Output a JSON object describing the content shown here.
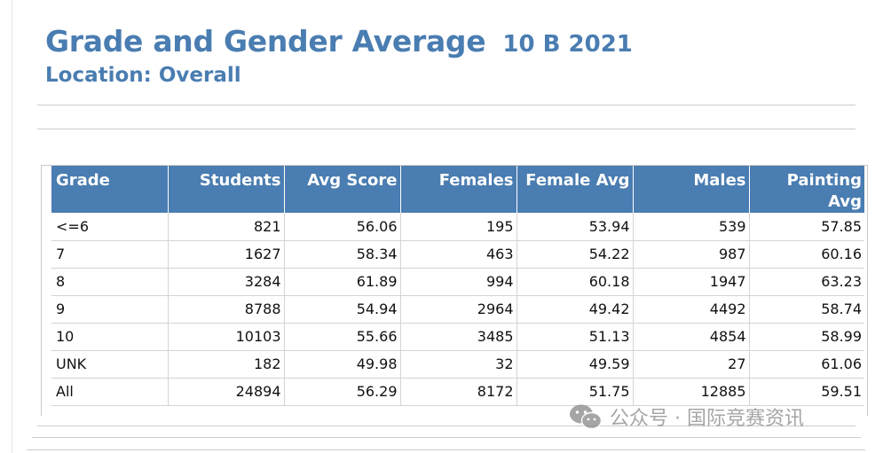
{
  "report": {
    "title": "Grade and Gender Average",
    "subtitle": "10 B 2021",
    "location": "Location: Overall"
  },
  "table": {
    "headers": [
      "Grade",
      "Students",
      "Avg Score",
      "Females",
      "Female Avg",
      "Males",
      "Painting Avg"
    ],
    "rows": [
      [
        "<=6",
        "821",
        "56.06",
        "195",
        "53.94",
        "539",
        "57.85"
      ],
      [
        "7",
        "1627",
        "58.34",
        "463",
        "54.22",
        "987",
        "60.16"
      ],
      [
        "8",
        "3284",
        "61.89",
        "994",
        "60.18",
        "1947",
        "63.23"
      ],
      [
        "9",
        "8788",
        "54.94",
        "2964",
        "49.42",
        "4492",
        "58.74"
      ],
      [
        "10",
        "10103",
        "55.66",
        "3485",
        "51.13",
        "4854",
        "58.99"
      ],
      [
        "UNK",
        "182",
        "49.98",
        "32",
        "49.59",
        "27",
        "61.06"
      ],
      [
        "All",
        "24894",
        "56.29",
        "8172",
        "51.75",
        "12885",
        "59.51"
      ]
    ]
  },
  "watermark": {
    "text": "公众号 · 国际竞赛资讯",
    "icon": "wechat-icon"
  },
  "colors": {
    "accent": "#4a7db1",
    "header_text": "#ffffff",
    "grid": "#d4d4d4"
  }
}
